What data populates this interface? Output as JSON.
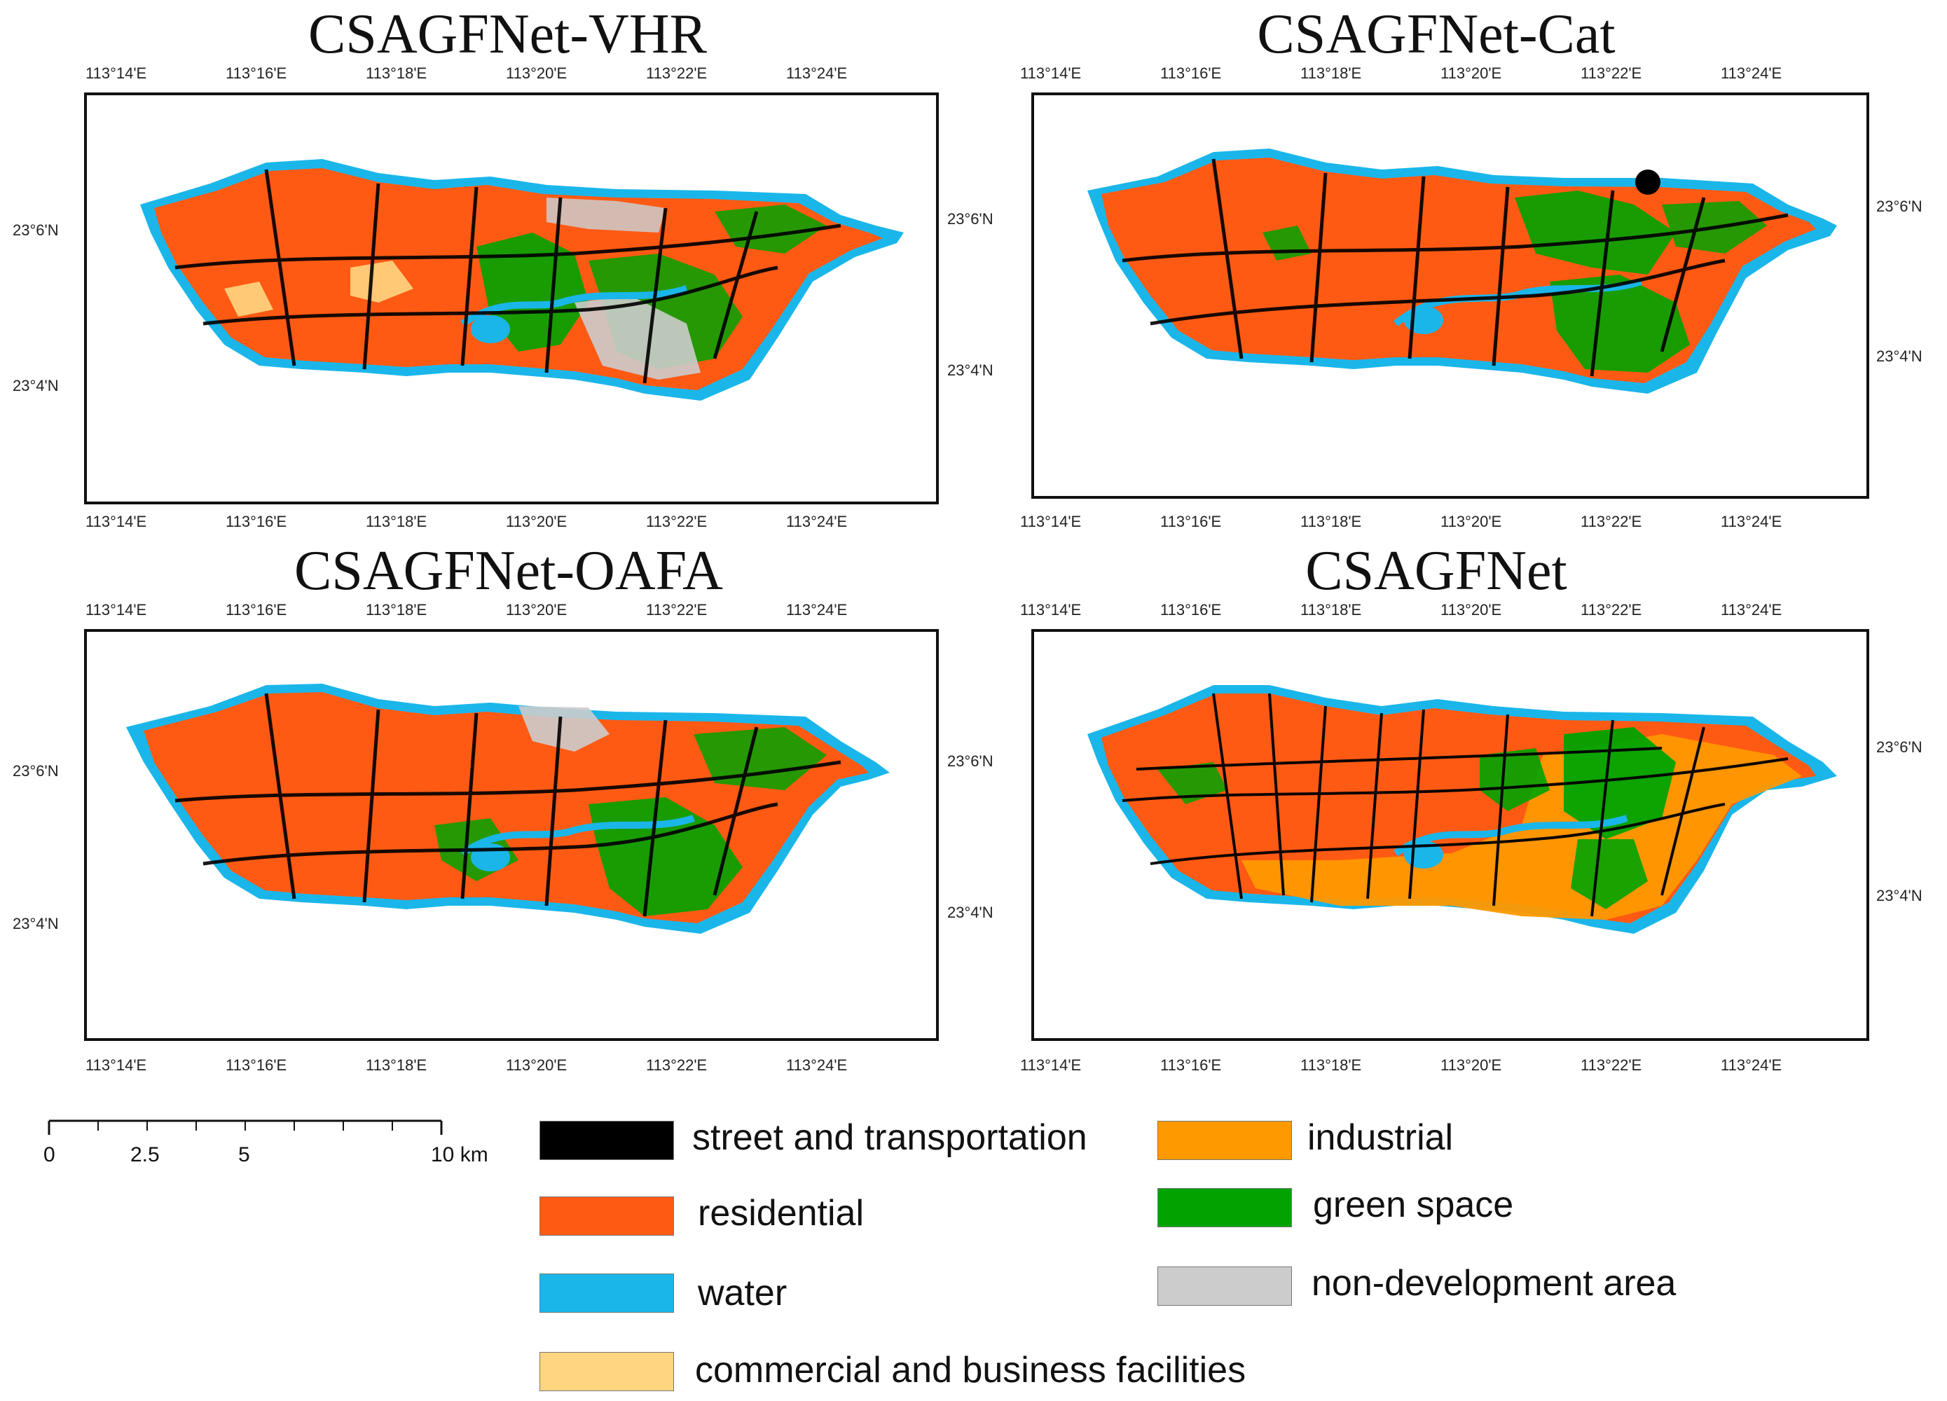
{
  "panels": [
    {
      "id": "vhr",
      "title": "CSAGFNet-VHR"
    },
    {
      "id": "cat",
      "title": "CSAGFNet-Cat"
    },
    {
      "id": "oafa",
      "title": "CSAGFNet-OAFA"
    },
    {
      "id": "full",
      "title": "CSAGFNet"
    }
  ],
  "axes": {
    "lon_labels": [
      "113°14'E",
      "113°16'E",
      "113°18'E",
      "113°20'E",
      "113°22'E",
      "113°24'E"
    ],
    "lat_labels": [
      "23°6'N",
      "23°4'N"
    ]
  },
  "legend": [
    {
      "label": "street and transportation",
      "color": "#000000"
    },
    {
      "label": "industrial",
      "color": "#ff9900"
    },
    {
      "label": "residential",
      "color": "#ff5a14"
    },
    {
      "label": "green space",
      "color": "#00a300"
    },
    {
      "label": "water",
      "color": "#1ab6ea"
    },
    {
      "label": "non-development area",
      "color": "#cccccc"
    },
    {
      "label": "commercial and business facilities",
      "color": "#ffd580"
    }
  ],
  "scale_bar": {
    "labels": [
      "0",
      "2.5",
      "5",
      "10 km"
    ]
  },
  "colors": {
    "residential": "#ff5a14",
    "green": "#00a300",
    "water": "#1ab6ea",
    "street": "#000000",
    "industrial": "#ff9900",
    "commercial": "#ffd580",
    "nondev": "#cccccc"
  }
}
